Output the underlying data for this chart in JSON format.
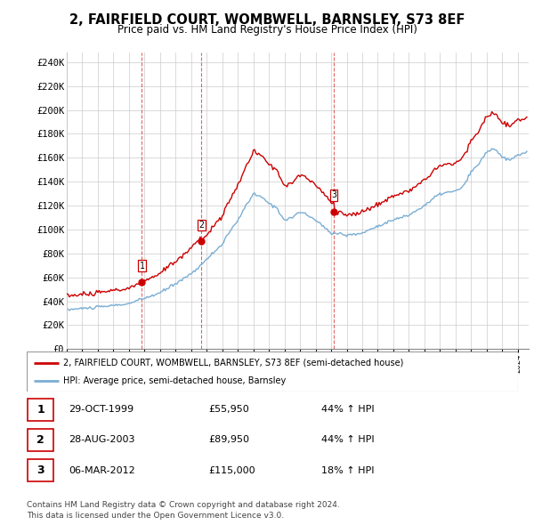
{
  "title": "2, FAIRFIELD COURT, WOMBWELL, BARNSLEY, S73 8EF",
  "subtitle": "Price paid vs. HM Land Registry's House Price Index (HPI)",
  "legend_label_red": "2, FAIRFIELD COURT, WOMBWELL, BARNSLEY, S73 8EF (semi-detached house)",
  "legend_label_blue": "HPI: Average price, semi-detached house, Barnsley",
  "footer1": "Contains HM Land Registry data © Crown copyright and database right 2024.",
  "footer2": "This data is licensed under the Open Government Licence v3.0.",
  "purchases": [
    {
      "num": 1,
      "date": "29-OCT-1999",
      "price": 55950,
      "year": 1999.83,
      "pct": "44%",
      "dir": "↑"
    },
    {
      "num": 2,
      "date": "28-AUG-2003",
      "price": 89950,
      "year": 2003.65,
      "pct": "44%",
      "dir": "↑"
    },
    {
      "num": 3,
      "date": "06-MAR-2012",
      "price": 115000,
      "year": 2012.17,
      "pct": "18%",
      "dir": "↑"
    }
  ],
  "ylim": [
    0,
    248000
  ],
  "yticks": [
    0,
    20000,
    40000,
    60000,
    80000,
    100000,
    120000,
    140000,
    160000,
    180000,
    200000,
    220000,
    240000
  ],
  "ytick_labels": [
    "£0",
    "£20K",
    "£40K",
    "£60K",
    "£80K",
    "£100K",
    "£120K",
    "£140K",
    "£160K",
    "£180K",
    "£200K",
    "£220K",
    "£240K"
  ],
  "background_color": "#ffffff",
  "grid_color": "#cccccc",
  "red_color": "#cc0000",
  "blue_color": "#7aaed4"
}
